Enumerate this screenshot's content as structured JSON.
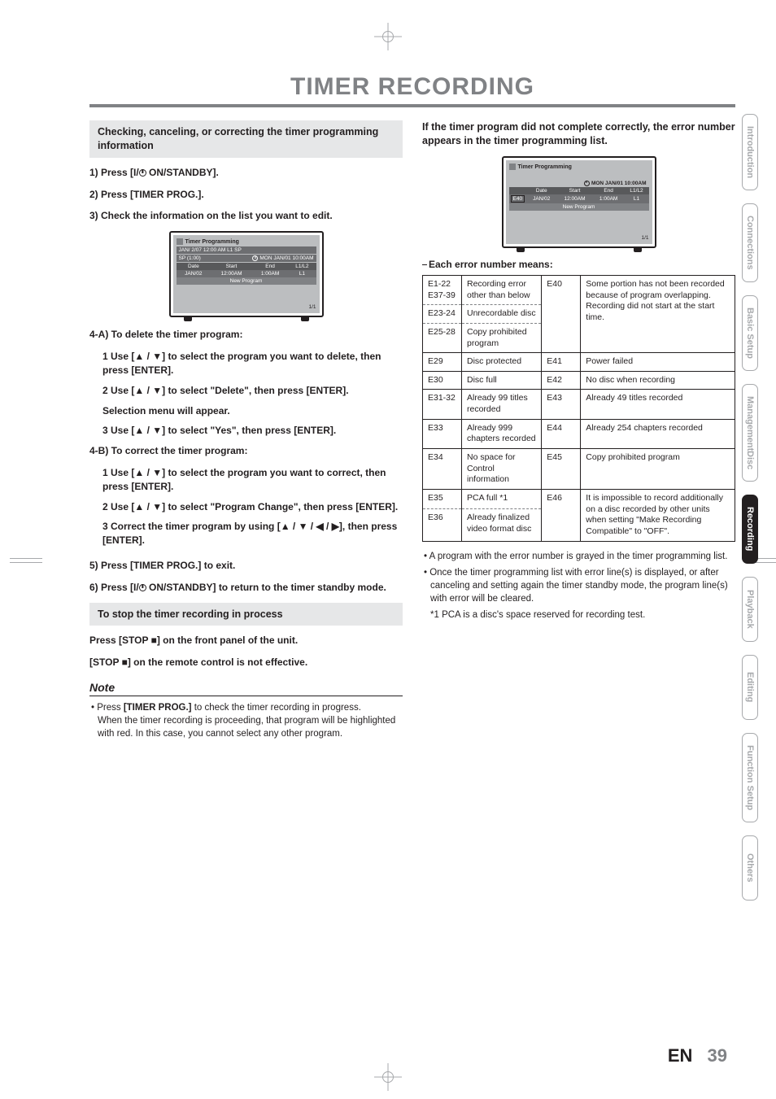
{
  "title": "TIMER RECORDING",
  "left": {
    "heading_box": "Checking, canceling, or correcting the timer programming information",
    "step1": "1) Press [I/  ON/STANDBY].",
    "step2": "2) Press [TIMER PROG.].",
    "step3": "3) Check the information on the list you want to edit.",
    "s4a": "4-A) To delete the timer program:",
    "s4a_1": "1 Use [▲ / ▼] to select the program you want to delete, then press [ENTER].",
    "s4a_2": "2 Use [▲ / ▼] to select \"Delete\", then press [ENTER].",
    "s4a_2b": "Selection menu will appear.",
    "s4a_3": "3 Use [▲ / ▼] to select \"Yes\", then press [ENTER].",
    "s4b": "4-B) To correct the timer program:",
    "s4b_1": "1 Use [▲ / ▼] to select the program you want to correct, then press [ENTER].",
    "s4b_2": "2 Use [▲ / ▼] to select \"Program Change\", then press [ENTER].",
    "s4b_3": "3 Correct the timer program by using [▲ / ▼ / ◀ / ▶], then press [ENTER].",
    "step5": "5) Press [TIMER PROG.] to exit.",
    "step6": "6) Press [I/  ON/STANDBY] to return to the timer standby mode.",
    "stop_heading": "To stop the timer recording in process",
    "stop_1": "Press [STOP ■] on the front panel of the unit.",
    "stop_2": "[STOP ■] on the remote control is not effective.",
    "note_title": "Note",
    "note_body1": "• Press [TIMER PROG.] to check the timer recording in progress.",
    "note_body2": "When the timer recording is proceeding, that program will be highlighted with red. In this case, you cannot select any other program."
  },
  "right": {
    "heading_box": "If the timer program did not complete correctly, the error number appears in the timer programming list.",
    "err_heading": "Each error number means:",
    "notes": [
      "• A program with the error number is grayed in the timer programming list.",
      "• Once the timer programming list with error line(s) is displayed, or after canceling and setting again the timer standby mode, the program line(s) with error will be cleared.",
      "*1 PCA is a disc's space reserved for recording test."
    ]
  },
  "tv1": {
    "title": "Timer Programming",
    "status_left": "JAN/ 2/07 12:00 AM    L1    SP",
    "status_left2": "SP (1:00)",
    "clock": "MON JAN/01 10:00AM",
    "cols": [
      "Date",
      "Start",
      "End",
      "L1/L2"
    ],
    "row": [
      "JAN/02",
      "12:00AM",
      "1:00AM",
      "L1"
    ],
    "newprog": "New Program",
    "page": "1/1"
  },
  "tv2": {
    "title": "Timer Programming",
    "clock": "MON JAN/01 10:00AM",
    "cols": [
      "",
      "Date",
      "Start",
      "End",
      "L1/L2"
    ],
    "row": [
      "E40",
      "JAN/02",
      "12:00AM",
      "1:00AM",
      "L1"
    ],
    "newprog": "New Program",
    "page": "1/1"
  },
  "err_table": [
    {
      "c1": "E1-22\nE37-39",
      "d1": "Recording error other than below",
      "c2": "E40",
      "d2": "Some portion has not been recorded because of program overlapping. Recording did not start at the start time.",
      "rs": 3
    },
    {
      "c1": "E23-24",
      "d1": "Unrecordable disc"
    },
    {
      "c1": "E25-28",
      "d1": "Copy prohibited program"
    },
    {
      "c1": "E29",
      "d1": "Disc protected",
      "c2": "E41",
      "d2": "Power failed"
    },
    {
      "c1": "E30",
      "d1": "Disc full",
      "c2": "E42",
      "d2": "No disc when recording"
    },
    {
      "c1": "E31-32",
      "d1": "Already 99 titles recorded",
      "c2": "E43",
      "d2": "Already 49 titles recorded"
    },
    {
      "c1": "E33",
      "d1": "Already 999 chapters recorded",
      "c2": "E44",
      "d2": "Already 254 chapters recorded"
    },
    {
      "c1": "E34",
      "d1": "No space for Control information",
      "c2": "E45",
      "d2": "Copy prohibited program"
    },
    {
      "c1": "E35",
      "d1": "PCA full *1",
      "c2": "E46",
      "d2": "It is impossible to record additionally on a disc recorded by other units when setting \"Make Recording Compatible\" to \"OFF\".",
      "rs": 2
    },
    {
      "c1": "E36",
      "d1": "Already finalized video format disc"
    }
  ],
  "tabs": [
    {
      "label": "Introduction",
      "active": false
    },
    {
      "label": "Connections",
      "active": false
    },
    {
      "label": "Basic Setup",
      "active": false
    },
    {
      "label": "Disc Management",
      "active": false,
      "stack": true,
      "l1": "Disc",
      "l2": "Management"
    },
    {
      "label": "Recording",
      "active": true
    },
    {
      "label": "Playback",
      "active": false
    },
    {
      "label": "Editing",
      "active": false
    },
    {
      "label": "Function Setup",
      "active": false
    },
    {
      "label": "Others",
      "active": false
    }
  ],
  "footer": {
    "lang": "EN",
    "page": "39"
  }
}
